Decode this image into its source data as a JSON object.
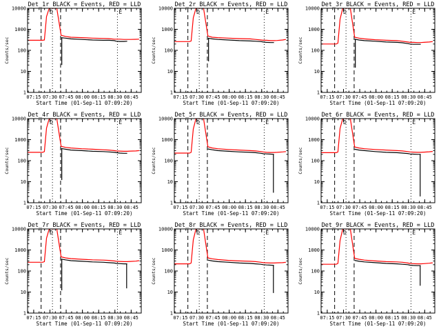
{
  "chart_data": [
    {
      "type": "line",
      "title": "Det_1r BLACK = Events, RED = LLD",
      "xlabel": "Start Time (01-Sep-11 07:09:20)",
      "ylabel": "Counts/sec",
      "xticks": [
        "07:15",
        "07:30",
        "07:45",
        "08:00",
        "08:15",
        "08:30",
        "08:45"
      ],
      "yticks": [
        "1",
        "10",
        "100",
        "1000",
        "10000"
      ],
      "ylim": [
        1,
        10000
      ],
      "y_scale": "log",
      "x_minutes": [
        0,
        14,
        15.5,
        17.5,
        20,
        22.5,
        25.5,
        27,
        31,
        35,
        40,
        50,
        60,
        70,
        75,
        80,
        82,
        85,
        89,
        92,
        95,
        100,
        103
      ],
      "series": [
        {
          "name": "LLD",
          "color": "#ff0000",
          "values": [
            300,
            300,
            310,
            4000,
            10000,
            10000,
            10000,
            10000,
            520,
            460,
            420,
            400,
            380,
            370,
            360,
            340,
            340,
            340,
            330,
            330,
            330,
            335,
            340
          ]
        },
        {
          "name": "Events",
          "color": "#000000",
          "values": [
            null,
            null,
            null,
            null,
            null,
            null,
            null,
            null,
            400,
            380,
            350,
            330,
            310,
            300,
            300,
            290,
            270,
            265,
            265,
            270,
            null,
            null,
            null
          ]
        }
      ],
      "dips": [
        {
          "x": 31.6,
          "y": 20
        }
      ],
      "markers": {
        "D": 23,
        "E": 83
      },
      "dashed_lines": [
        12.5,
        30.5
      ],
      "dotted_lines": [
        23,
        83
      ]
    },
    {
      "type": "line",
      "title": "Det_2r BLACK = Events, RED = LLD",
      "xlabel": "Start Time (01-Sep-11 07:09:20)",
      "ylabel": "Counts/sec",
      "xticks": [
        "07:15",
        "07:30",
        "07:45",
        "08:00",
        "08:15",
        "08:30",
        "08:45"
      ],
      "yticks": [
        "1",
        "10",
        "100",
        "1000",
        "10000"
      ],
      "ylim": [
        1,
        10000
      ],
      "y_scale": "log",
      "x_minutes": [
        0,
        14,
        15.5,
        17.5,
        20,
        22.5,
        25.5,
        27,
        31,
        35,
        40,
        50,
        60,
        70,
        75,
        80,
        82,
        85,
        89,
        92,
        95,
        100,
        103
      ],
      "series": [
        {
          "name": "LLD",
          "color": "#ff0000",
          "values": [
            260,
            260,
            280,
            3500,
            10000,
            10000,
            10000,
            10000,
            480,
            420,
            400,
            380,
            360,
            350,
            330,
            310,
            300,
            300,
            290,
            290,
            295,
            310,
            330
          ]
        },
        {
          "name": "Events",
          "color": "#000000",
          "values": [
            null,
            null,
            null,
            null,
            null,
            null,
            null,
            null,
            380,
            350,
            330,
            310,
            290,
            280,
            270,
            260,
            250,
            240,
            235,
            235,
            null,
            null,
            null
          ]
        }
      ],
      "dips": [
        {
          "x": 31.6,
          "y": 30
        }
      ],
      "markers": {
        "D": 23,
        "E": 83
      },
      "dashed_lines": [
        12.5,
        30.5
      ],
      "dotted_lines": [
        23,
        83
      ]
    },
    {
      "type": "line",
      "title": "Det_3r BLACK = Events, RED = LLD",
      "xlabel": "Start Time (01-Sep-11 07:09:20)",
      "ylabel": "Counts/sec",
      "xticks": [
        "07:15",
        "07:30",
        "07:45",
        "08:00",
        "08:15",
        "08:30",
        "08:45"
      ],
      "yticks": [
        "1",
        "10",
        "100",
        "1000",
        "10000"
      ],
      "ylim": [
        1,
        10000
      ],
      "y_scale": "log",
      "x_minutes": [
        0,
        14,
        15.5,
        17.5,
        20,
        22.5,
        25.5,
        27,
        31,
        35,
        40,
        50,
        60,
        70,
        75,
        80,
        82,
        85,
        89,
        92,
        95,
        100,
        103
      ],
      "series": [
        {
          "name": "LLD",
          "color": "#ff0000",
          "values": [
            200,
            200,
            220,
            3000,
            10000,
            10000,
            10000,
            10000,
            420,
            380,
            350,
            320,
            300,
            290,
            270,
            250,
            240,
            240,
            235,
            235,
            240,
            250,
            260
          ]
        },
        {
          "name": "Events",
          "color": "#000000",
          "values": [
            null,
            null,
            null,
            null,
            null,
            null,
            null,
            null,
            340,
            310,
            290,
            270,
            250,
            240,
            230,
            210,
            200,
            195,
            195,
            195,
            null,
            null,
            null
          ]
        }
      ],
      "dips": [
        {
          "x": 31.6,
          "y": 15
        }
      ],
      "markers": {
        "D": 23,
        "E": 83
      },
      "dashed_lines": [
        12.5,
        30.5
      ],
      "dotted_lines": [
        23,
        83
      ]
    },
    {
      "type": "line",
      "title": "Det_4r BLACK = Events, RED = LLD",
      "xlabel": "Start Time (01-Sep-11 07:09:20)",
      "ylabel": "Counts/sec",
      "xticks": [
        "07:15",
        "07:30",
        "07:45",
        "08:00",
        "08:15",
        "08:30",
        "08:45"
      ],
      "yticks": [
        "1",
        "10",
        "100",
        "1000",
        "10000"
      ],
      "ylim": [
        1,
        10000
      ],
      "y_scale": "log",
      "x_minutes": [
        0,
        14,
        15.5,
        17.5,
        20,
        22.5,
        25.5,
        27,
        31,
        35,
        40,
        50,
        60,
        70,
        75,
        80,
        82,
        85,
        89,
        92,
        95,
        100,
        103
      ],
      "series": [
        {
          "name": "LLD",
          "color": "#ff0000",
          "values": [
            250,
            250,
            270,
            3500,
            10000,
            10000,
            10000,
            10000,
            480,
            430,
            400,
            370,
            350,
            330,
            320,
            300,
            290,
            285,
            280,
            280,
            285,
            290,
            300
          ]
        },
        {
          "name": "Events",
          "color": "#000000",
          "values": [
            null,
            null,
            null,
            null,
            null,
            null,
            null,
            null,
            380,
            350,
            320,
            300,
            280,
            270,
            260,
            250,
            240,
            230,
            225,
            225,
            null,
            null,
            null
          ]
        }
      ],
      "dips": [
        {
          "x": 31.6,
          "y": 12
        }
      ],
      "markers": {
        "D": 23,
        "E": 83
      },
      "dashed_lines": [
        12.5,
        30.5
      ],
      "dotted_lines": [
        23,
        83
      ]
    },
    {
      "type": "line",
      "title": "Det_5r BLACK = Events, RED = LLD",
      "xlabel": "Start Time (01-Sep-11 07:09:20)",
      "ylabel": "Counts/sec",
      "xticks": [
        "07:15",
        "07:30",
        "07:45",
        "08:00",
        "08:15",
        "08:30",
        "08:45"
      ],
      "yticks": [
        "1",
        "10",
        "100",
        "1000",
        "10000"
      ],
      "ylim": [
        1,
        10000
      ],
      "y_scale": "log",
      "x_minutes": [
        0,
        14,
        15.5,
        17.5,
        20,
        22.5,
        25.5,
        27,
        31,
        35,
        40,
        50,
        60,
        70,
        75,
        80,
        82,
        85,
        89,
        92,
        95,
        100,
        103
      ],
      "series": [
        {
          "name": "LLD",
          "color": "#ff0000",
          "values": [
            230,
            230,
            250,
            3200,
            10000,
            10000,
            10000,
            10000,
            460,
            400,
            370,
            340,
            320,
            300,
            290,
            270,
            260,
            250,
            245,
            245,
            250,
            260,
            270
          ]
        },
        {
          "name": "Events",
          "color": "#000000",
          "values": [
            null,
            null,
            null,
            null,
            null,
            null,
            null,
            null,
            360,
            330,
            300,
            280,
            260,
            250,
            240,
            225,
            215,
            210,
            205,
            200,
            null,
            null,
            null
          ]
        }
      ],
      "dips": [
        {
          "x": 91.5,
          "y": 3
        }
      ],
      "markers": {
        "D": 23,
        "E": 83
      },
      "dashed_lines": [
        12.5,
        30.5
      ],
      "dotted_lines": [
        23,
        83
      ]
    },
    {
      "type": "line",
      "title": "Det_6r BLACK = Events, RED = LLD",
      "xlabel": "Start Time (01-Sep-11 07:09:20)",
      "ylabel": "Counts/sec",
      "xticks": [
        "07:15",
        "07:30",
        "07:45",
        "08:00",
        "08:15",
        "08:30",
        "08:45"
      ],
      "yticks": [
        "1",
        "10",
        "100",
        "1000",
        "10000"
      ],
      "ylim": [
        1,
        10000
      ],
      "y_scale": "log",
      "x_minutes": [
        0,
        14,
        15.5,
        17.5,
        20,
        22.5,
        25.5,
        27,
        31,
        35,
        40,
        50,
        60,
        70,
        75,
        80,
        82,
        85,
        89,
        92,
        95,
        100,
        103
      ],
      "series": [
        {
          "name": "LLD",
          "color": "#ff0000",
          "values": [
            240,
            240,
            260,
            3400,
            10000,
            10000,
            10000,
            10000,
            450,
            400,
            370,
            340,
            320,
            300,
            290,
            270,
            260,
            255,
            250,
            250,
            255,
            265,
            275
          ]
        },
        {
          "name": "Events",
          "color": "#000000",
          "values": [
            null,
            null,
            null,
            null,
            null,
            null,
            null,
            null,
            350,
            320,
            300,
            270,
            250,
            240,
            230,
            220,
            210,
            205,
            200,
            200,
            null,
            null,
            null
          ]
        }
      ],
      "dips": [
        {
          "x": 91.5,
          "y": 2
        }
      ],
      "markers": {
        "D": 23,
        "E": 83
      },
      "dashed_lines": [
        12.5,
        30.5
      ],
      "dotted_lines": [
        23,
        83
      ]
    },
    {
      "type": "line",
      "title": "Det_7r BLACK = Events, RED = LLD",
      "xlabel": "Start Time (01-Sep-11 07:09:20)",
      "ylabel": "Counts/sec",
      "xticks": [
        "07:15",
        "07:30",
        "07:45",
        "08:00",
        "08:15",
        "08:30",
        "08:45"
      ],
      "yticks": [
        "1",
        "10",
        "100",
        "1000",
        "10000"
      ],
      "ylim": [
        1,
        10000
      ],
      "y_scale": "log",
      "x_minutes": [
        0,
        14,
        15.5,
        17.5,
        20,
        22.5,
        25.5,
        27,
        31,
        35,
        40,
        50,
        60,
        70,
        75,
        80,
        82,
        85,
        89,
        92,
        95,
        100,
        103
      ],
      "series": [
        {
          "name": "LLD",
          "color": "#ff0000",
          "values": [
            260,
            260,
            280,
            3600,
            10000,
            10000,
            10000,
            10000,
            470,
            420,
            390,
            360,
            340,
            330,
            320,
            300,
            290,
            285,
            280,
            280,
            285,
            295,
            310
          ]
        },
        {
          "name": "Events",
          "color": "#000000",
          "values": [
            null,
            null,
            null,
            null,
            null,
            null,
            null,
            null,
            370,
            340,
            310,
            290,
            270,
            260,
            250,
            240,
            230,
            225,
            220,
            220,
            null,
            null,
            null
          ]
        }
      ],
      "dips": [
        {
          "x": 31.6,
          "y": 12
        },
        {
          "x": 91.5,
          "y": 15
        }
      ],
      "markers": {
        "D": 23,
        "E": 83
      },
      "dashed_lines": [
        12.5,
        30.5
      ],
      "dotted_lines": [
        23,
        83
      ]
    },
    {
      "type": "line",
      "title": "Det_8r BLACK = Events, RED = LLD",
      "xlabel": "Start Time (01-Sep-11 07:09:20)",
      "ylabel": "Counts/sec",
      "xticks": [
        "07:15",
        "07:30",
        "07:45",
        "08:00",
        "08:15",
        "08:30",
        "08:45"
      ],
      "yticks": [
        "1",
        "10",
        "100",
        "1000",
        "10000"
      ],
      "ylim": [
        1,
        10000
      ],
      "y_scale": "log",
      "x_minutes": [
        0,
        14,
        15.5,
        17.5,
        20,
        22.5,
        25.5,
        27,
        31,
        35,
        40,
        50,
        60,
        70,
        75,
        80,
        82,
        85,
        89,
        92,
        95,
        100,
        103
      ],
      "series": [
        {
          "name": "LLD",
          "color": "#ff0000",
          "values": [
            220,
            220,
            240,
            3000,
            10000,
            10000,
            10000,
            10000,
            420,
            380,
            350,
            320,
            300,
            290,
            280,
            260,
            250,
            245,
            240,
            240,
            245,
            250,
            260
          ]
        },
        {
          "name": "Events",
          "color": "#000000",
          "values": [
            null,
            null,
            null,
            null,
            null,
            null,
            null,
            null,
            330,
            300,
            280,
            260,
            240,
            230,
            220,
            210,
            200,
            195,
            190,
            185,
            null,
            null,
            null
          ]
        }
      ],
      "dips": [
        {
          "x": 91.5,
          "y": 9
        }
      ],
      "markers": {
        "D": 23,
        "E": 83
      },
      "dashed_lines": [
        12.5,
        30.5
      ],
      "dotted_lines": [
        23,
        83
      ]
    },
    {
      "type": "line",
      "title": "Det_9r BLACK = Events, RED = LLD",
      "xlabel": "Start Time (01-Sep-11 07:09:20)",
      "ylabel": "Counts/sec",
      "xticks": [
        "07:15",
        "07:30",
        "07:45",
        "08:00",
        "08:15",
        "08:30",
        "08:45"
      ],
      "yticks": [
        "1",
        "10",
        "100",
        "1000",
        "10000"
      ],
      "ylim": [
        1,
        10000
      ],
      "y_scale": "log",
      "x_minutes": [
        0,
        14,
        15.5,
        17.5,
        20,
        22.5,
        25.5,
        27,
        31,
        35,
        40,
        50,
        60,
        70,
        75,
        80,
        82,
        85,
        89,
        92,
        95,
        100,
        103
      ],
      "series": [
        {
          "name": "LLD",
          "color": "#ff0000",
          "values": [
            210,
            210,
            230,
            2800,
            10000,
            10000,
            10000,
            10000,
            400,
            360,
            330,
            300,
            280,
            270,
            260,
            240,
            230,
            225,
            220,
            220,
            225,
            235,
            245
          ]
        },
        {
          "name": "Events",
          "color": "#000000",
          "values": [
            null,
            null,
            null,
            null,
            null,
            null,
            null,
            null,
            320,
            290,
            270,
            250,
            230,
            220,
            210,
            200,
            190,
            185,
            180,
            180,
            null,
            null,
            null
          ]
        }
      ],
      "dips": [
        {
          "x": 91.5,
          "y": 20
        }
      ],
      "markers": {
        "D": 23,
        "E": 83
      },
      "dashed_lines": [
        12.5,
        30.5
      ],
      "dotted_lines": [
        23,
        83
      ]
    }
  ]
}
